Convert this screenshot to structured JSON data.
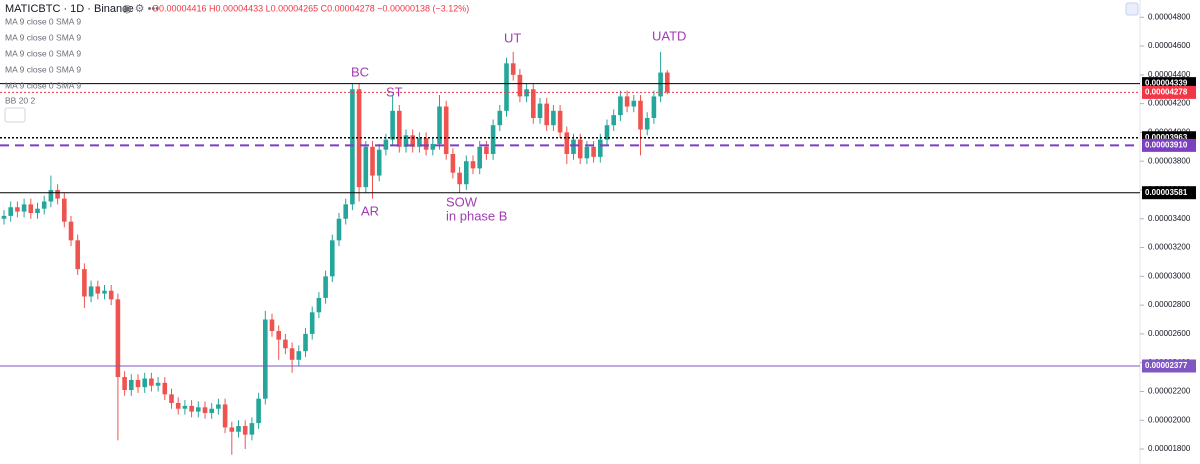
{
  "header": {
    "symbol": "MATICBTC · 1D · Binance",
    "ohlc": "O0.00004416 H0.00004433 L0.00004265 C0.00004278 −0.00000138 (−3.12%)",
    "indicators": [
      "MA 9 close 0 SMA 9",
      "MA 9 close 0 SMA 9",
      "MA 9 close 0 SMA 9",
      "MA 9 close 0 SMA 9",
      "MA 9 close 0 SMA 9",
      "BB 20 2"
    ]
  },
  "chart_data": {
    "type": "candlestick",
    "up_color": "#26a69a",
    "down_color": "#ef5350",
    "ylim": [
      1.696e-05,
      4.92e-05
    ],
    "yticks": [
      {
        "value": 1.8e-05,
        "label": "0.00001800"
      },
      {
        "value": 2e-05,
        "label": "0.00002000"
      },
      {
        "value": 2.2e-05,
        "label": "0.00002200"
      },
      {
        "value": 2.4e-05,
        "label": "0.00002400"
      },
      {
        "value": 2.6e-05,
        "label": "0.00002600"
      },
      {
        "value": 2.8e-05,
        "label": "0.00002800"
      },
      {
        "value": 3e-05,
        "label": "0.00003000"
      },
      {
        "value": 3.2e-05,
        "label": "0.00003200"
      },
      {
        "value": 3.4e-05,
        "label": "0.00003400"
      },
      {
        "value": 3.6e-05,
        "label": "0.00003600"
      },
      {
        "value": 3.8e-05,
        "label": "0.00003800"
      },
      {
        "value": 4e-05,
        "label": "0.00004000"
      },
      {
        "value": 4.2e-05,
        "label": "0.00004200"
      },
      {
        "value": 4.4e-05,
        "label": "0.00004400"
      },
      {
        "value": 4.6e-05,
        "label": "0.00004600"
      },
      {
        "value": 4.8e-05,
        "label": "0.00004800"
      }
    ],
    "levels": [
      {
        "value": 4.339e-05,
        "label": "0.00004339",
        "color": "#000000",
        "style": "solid"
      },
      {
        "value": 4.278e-05,
        "label": "0.00004278",
        "color": "#f23645",
        "style": "dotted"
      },
      {
        "value": 3.963e-05,
        "label": "0.00003963",
        "color": "#000000",
        "style": "dotted"
      },
      {
        "value": 3.91e-05,
        "label": "0.00003910",
        "color": "#7b3fc0",
        "style": "dashed"
      },
      {
        "value": 3.581e-05,
        "label": "0.00003581",
        "color": "#000000",
        "style": "solid"
      },
      {
        "value": 2.377e-05,
        "label": "0.00002377",
        "color": "#7e57c2",
        "style": "solid"
      }
    ],
    "annotations": [
      "BC",
      "ST",
      "AR",
      "SOW",
      "in phase B",
      "UT",
      "UATD"
    ],
    "open": [
      3.4e-05,
      3.42e-05,
      3.48e-05,
      3.45e-05,
      3.5e-05,
      3.44e-05,
      3.47e-05,
      3.52e-05,
      3.6e-05,
      3.54e-05,
      3.38e-05,
      3.25e-05,
      3.05e-05,
      2.86e-05,
      2.93e-05,
      2.88e-05,
      2.9e-05,
      2.84e-05,
      2.3e-05,
      2.21e-05,
      2.28e-05,
      2.23e-05,
      2.29e-05,
      2.24e-05,
      2.26e-05,
      2.18e-05,
      2.12e-05,
      2.08e-05,
      2.1e-05,
      2.06e-05,
      2.09e-05,
      2.05e-05,
      2.08e-05,
      2.11e-05,
      1.95e-05,
      1.92e-05,
      1.96e-05,
      1.9e-05,
      1.98e-05,
      2.15e-05,
      2.7e-05,
      2.62e-05,
      2.56e-05,
      2.5e-05,
      2.42e-05,
      2.48e-05,
      2.6e-05,
      2.75e-05,
      2.85e-05,
      3e-05,
      3.25e-05,
      3.4e-05,
      3.5e-05,
      4.3e-05,
      3.62e-05,
      3.9e-05,
      3.7e-05,
      3.88e-05,
      3.95e-05,
      4.15e-05,
      3.9e-05,
      3.98e-05,
      3.9e-05,
      3.96e-05,
      3.88e-05,
      3.92e-05,
      4.18e-05,
      3.85e-05,
      3.72e-05,
      3.64e-05,
      3.8e-05,
      3.75e-05,
      3.9e-05,
      3.85e-05,
      4.05e-05,
      4.15e-05,
      4.48e-05,
      4.4e-05,
      4.25e-05,
      4.3e-05,
      4.1e-05,
      4.2e-05,
      4.05e-05,
      4.15e-05,
      4e-05,
      3.85e-05,
      3.95e-05,
      3.82e-05,
      3.9e-05,
      3.83e-05,
      3.95e-05,
      4.05e-05,
      4.12e-05,
      4.25e-05,
      4.18e-05,
      4.22e-05,
      4.02e-05,
      4.1e-05,
      4.25e-05,
      4.416e-05
    ],
    "high": [
      3.46e-05,
      3.52e-05,
      3.52e-05,
      3.54e-05,
      3.54e-05,
      3.51e-05,
      3.56e-05,
      3.7e-05,
      3.64e-05,
      3.58e-05,
      3.42e-05,
      3.29e-05,
      3.09e-05,
      2.97e-05,
      2.97e-05,
      2.94e-05,
      2.94e-05,
      2.88e-05,
      2.34e-05,
      2.32e-05,
      2.32e-05,
      2.33e-05,
      2.33e-05,
      2.3e-05,
      2.3e-05,
      2.22e-05,
      2.16e-05,
      2.14e-05,
      2.14e-05,
      2.13e-05,
      2.13e-05,
      2.12e-05,
      2.15e-05,
      2.15e-05,
      1.99e-05,
      2e-05,
      2e-05,
      2.02e-05,
      2.19e-05,
      2.76e-05,
      2.74e-05,
      2.66e-05,
      2.6e-05,
      2.54e-05,
      2.52e-05,
      2.64e-05,
      2.79e-05,
      2.89e-05,
      3.04e-05,
      3.29e-05,
      3.44e-05,
      3.54e-05,
      4.339e-05,
      4.34e-05,
      3.94e-05,
      3.94e-05,
      3.92e-05,
      3.99e-05,
      4.26e-05,
      4.19e-05,
      4.02e-05,
      4.02e-05,
      4e-05,
      4e-05,
      3.96e-05,
      4.26e-05,
      4.22e-05,
      3.89e-05,
      3.76e-05,
      3.84e-05,
      3.84e-05,
      3.94e-05,
      3.94e-05,
      4.09e-05,
      4.19e-05,
      4.52e-05,
      4.56e-05,
      4.44e-05,
      4.34e-05,
      4.34e-05,
      4.24e-05,
      4.24e-05,
      4.19e-05,
      4.19e-05,
      4.04e-05,
      3.99e-05,
      3.99e-05,
      3.94e-05,
      3.94e-05,
      3.99e-05,
      4.09e-05,
      4.16e-05,
      4.29e-05,
      4.29e-05,
      4.26e-05,
      4.26e-05,
      4.14e-05,
      4.29e-05,
      4.56e-05,
      4.433e-05
    ],
    "low": [
      3.36e-05,
      3.38e-05,
      3.41e-05,
      3.41e-05,
      3.4e-05,
      3.4e-05,
      3.43e-05,
      3.48e-05,
      3.5e-05,
      3.34e-05,
      3.21e-05,
      3.01e-05,
      2.78e-05,
      2.82e-05,
      2.84e-05,
      2.84e-05,
      2.8e-05,
      1.86e-05,
      2.17e-05,
      2.17e-05,
      2.19e-05,
      2.19e-05,
      2.2e-05,
      2.2e-05,
      2.14e-05,
      2.08e-05,
      2.04e-05,
      2.04e-05,
      2.02e-05,
      2.02e-05,
      2.01e-05,
      2.01e-05,
      2.04e-05,
      1.91e-05,
      1.76e-05,
      1.88e-05,
      1.8e-05,
      1.86e-05,
      1.94e-05,
      2.11e-05,
      2.58e-05,
      2.42e-05,
      2.46e-05,
      2.33e-05,
      2.38e-05,
      2.44e-05,
      2.56e-05,
      2.71e-05,
      2.81e-05,
      2.96e-05,
      3.21e-05,
      3.36e-05,
      3.46e-05,
      3.52e-05,
      3.58e-05,
      3.54e-05,
      3.66e-05,
      3.84e-05,
      3.91e-05,
      3.86e-05,
      3.86e-05,
      3.86e-05,
      3.86e-05,
      3.84e-05,
      3.84e-05,
      3.88e-05,
      3.81e-05,
      3.68e-05,
      3.58e-05,
      3.6e-05,
      3.71e-05,
      3.71e-05,
      3.81e-05,
      3.81e-05,
      4.01e-05,
      4.11e-05,
      4.36e-05,
      4.21e-05,
      4.21e-05,
      4.06e-05,
      4.06e-05,
      4.01e-05,
      4.01e-05,
      3.96e-05,
      3.78e-05,
      3.81e-05,
      3.78e-05,
      3.78e-05,
      3.79e-05,
      3.79e-05,
      3.91e-05,
      4.01e-05,
      4.08e-05,
      4.14e-05,
      4.14e-05,
      3.84e-05,
      3.98e-05,
      4.06e-05,
      4.21e-05,
      4.265e-05
    ],
    "close": [
      3.42e-05,
      3.48e-05,
      3.45e-05,
      3.5e-05,
      3.44e-05,
      3.47e-05,
      3.52e-05,
      3.6e-05,
      3.54e-05,
      3.38e-05,
      3.25e-05,
      3.05e-05,
      2.86e-05,
      2.93e-05,
      2.88e-05,
      2.9e-05,
      2.84e-05,
      2.3e-05,
      2.21e-05,
      2.28e-05,
      2.23e-05,
      2.29e-05,
      2.24e-05,
      2.26e-05,
      2.18e-05,
      2.12e-05,
      2.08e-05,
      2.1e-05,
      2.06e-05,
      2.09e-05,
      2.05e-05,
      2.08e-05,
      2.11e-05,
      1.95e-05,
      1.92e-05,
      1.96e-05,
      1.9e-05,
      1.98e-05,
      2.15e-05,
      2.7e-05,
      2.62e-05,
      2.56e-05,
      2.5e-05,
      2.42e-05,
      2.48e-05,
      2.6e-05,
      2.75e-05,
      2.85e-05,
      3e-05,
      3.25e-05,
      3.4e-05,
      3.5e-05,
      4.3e-05,
      3.62e-05,
      3.9e-05,
      3.7e-05,
      3.88e-05,
      3.95e-05,
      4.15e-05,
      3.9e-05,
      3.98e-05,
      3.9e-05,
      3.96e-05,
      3.88e-05,
      3.92e-05,
      4.18e-05,
      3.85e-05,
      3.72e-05,
      3.64e-05,
      3.8e-05,
      3.75e-05,
      3.9e-05,
      3.85e-05,
      4.05e-05,
      4.15e-05,
      4.48e-05,
      4.4e-05,
      4.25e-05,
      4.3e-05,
      4.1e-05,
      4.2e-05,
      4.05e-05,
      4.15e-05,
      4e-05,
      3.85e-05,
      3.95e-05,
      3.82e-05,
      3.9e-05,
      3.83e-05,
      3.95e-05,
      4.05e-05,
      4.12e-05,
      4.25e-05,
      4.18e-05,
      4.22e-05,
      4.02e-05,
      4.1e-05,
      4.25e-05,
      4.416e-05,
      4.278e-05
    ]
  }
}
